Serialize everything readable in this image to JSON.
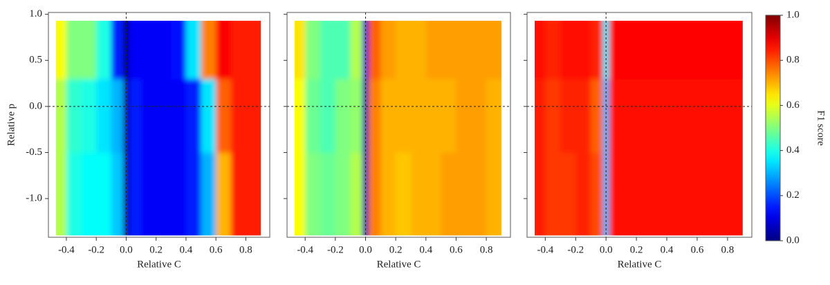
{
  "chart_data": [
    {
      "type": "heatmap",
      "colormap": "jet",
      "xlabel": "Relative C",
      "ylabel": "Relative p",
      "xlim": [
        -0.52,
        0.96
      ],
      "ylim": [
        -1.42,
        1.02
      ],
      "xticks": [
        -0.4,
        -0.2,
        {
          "value": 0,
          "label": "0.0"
        },
        0.2,
        0.4,
        0.6,
        0.8
      ],
      "yticks": [
        {
          "value": 1,
          "label": "1.0"
        },
        0.5,
        {
          "value": 0,
          "label": "0.0"
        },
        -0.5,
        {
          "value": -1,
          "label": "-1.0"
        }
      ],
      "vline": 0,
      "hline": 0,
      "x_bins": [
        -0.47,
        -0.4,
        -0.3,
        -0.2,
        -0.1,
        -0.02,
        0.02,
        0.1,
        0.2,
        0.3,
        0.4,
        0.5,
        0.6,
        0.7,
        0.8,
        0.9
      ],
      "y_bins": [
        -1.4,
        -0.5,
        0.3,
        0.93
      ],
      "z": [
        [
          0.55,
          0.4,
          0.38,
          0.38,
          0.32,
          0.03,
          0.15,
          0.12,
          0.12,
          0.12,
          0.15,
          0.3,
          0.7,
          0.85,
          0.85
        ],
        [
          0.55,
          0.42,
          0.4,
          0.35,
          0.3,
          0.03,
          0.15,
          0.12,
          0.12,
          0.12,
          0.15,
          0.35,
          0.78,
          0.85,
          0.85
        ],
        [
          0.62,
          0.5,
          0.5,
          0.4,
          0.15,
          0.02,
          0.12,
          0.12,
          0.12,
          0.14,
          0.35,
          0.75,
          0.88,
          0.85,
          0.85
        ]
      ]
    },
    {
      "type": "heatmap",
      "colormap": "jet",
      "xlabel": "Relative C",
      "xlim": [
        -0.52,
        0.96
      ],
      "ylim": [
        -1.42,
        1.02
      ],
      "xticks": [
        -0.4,
        -0.2,
        {
          "value": 0,
          "label": "0.0"
        },
        0.2,
        0.4,
        0.6,
        0.8
      ],
      "yticks": [
        1,
        0.5,
        0,
        -0.5,
        -1
      ],
      "vline": 0,
      "hline": 0,
      "x_bins": [
        -0.47,
        -0.4,
        -0.3,
        -0.2,
        -0.1,
        -0.02,
        0.02,
        0.1,
        0.2,
        0.3,
        0.4,
        0.5,
        0.6,
        0.7,
        0.8,
        0.9
      ],
      "y_bins": [
        -1.4,
        -0.5,
        0.3,
        0.93
      ],
      "z": [
        [
          0.62,
          0.5,
          0.48,
          0.5,
          0.55,
          0.05,
          0.75,
          0.7,
          0.68,
          0.7,
          0.7,
          0.72,
          0.72,
          0.72,
          0.7
        ],
        [
          0.62,
          0.48,
          0.45,
          0.5,
          0.52,
          0.05,
          0.75,
          0.7,
          0.7,
          0.7,
          0.7,
          0.7,
          0.72,
          0.72,
          0.7
        ],
        [
          0.65,
          0.5,
          0.45,
          0.45,
          0.55,
          0.08,
          0.78,
          0.72,
          0.7,
          0.7,
          0.72,
          0.72,
          0.72,
          0.72,
          0.72
        ]
      ]
    },
    {
      "type": "heatmap",
      "colormap": "jet",
      "xlabel": "Relative C",
      "xlim": [
        -0.52,
        0.96
      ],
      "ylim": [
        -1.42,
        1.02
      ],
      "xticks": [
        -0.4,
        -0.2,
        {
          "value": 0,
          "label": "0.0"
        },
        0.2,
        0.4,
        0.6,
        0.8
      ],
      "yticks": [
        1,
        0.5,
        0,
        -0.5,
        -1
      ],
      "vline": 0,
      "hline": 0,
      "x_bins": [
        -0.47,
        -0.4,
        -0.3,
        -0.2,
        -0.1,
        -0.02,
        0.02,
        0.1,
        0.2,
        0.3,
        0.4,
        0.5,
        0.6,
        0.7,
        0.8,
        0.9
      ],
      "y_bins": [
        -1.4,
        -0.5,
        0.3,
        0.93
      ],
      "z": [
        [
          0.85,
          0.82,
          0.82,
          0.84,
          0.8,
          0.3,
          0.86,
          0.86,
          0.86,
          0.86,
          0.86,
          0.86,
          0.86,
          0.86,
          0.86
        ],
        [
          0.85,
          0.82,
          0.84,
          0.84,
          0.78,
          0.3,
          0.86,
          0.86,
          0.86,
          0.86,
          0.86,
          0.86,
          0.86,
          0.86,
          0.86
        ],
        [
          0.86,
          0.84,
          0.86,
          0.86,
          0.84,
          0.35,
          0.87,
          0.87,
          0.87,
          0.87,
          0.87,
          0.87,
          0.87,
          0.87,
          0.87
        ]
      ],
      "colorbar": {
        "label": "F1 score",
        "lim": [
          0,
          1
        ],
        "ticks": [
          {
            "value": 0,
            "label": "0.0"
          },
          0.2,
          0.4,
          0.6,
          0.8,
          {
            "value": 1,
            "label": "1.0"
          }
        ]
      }
    }
  ]
}
